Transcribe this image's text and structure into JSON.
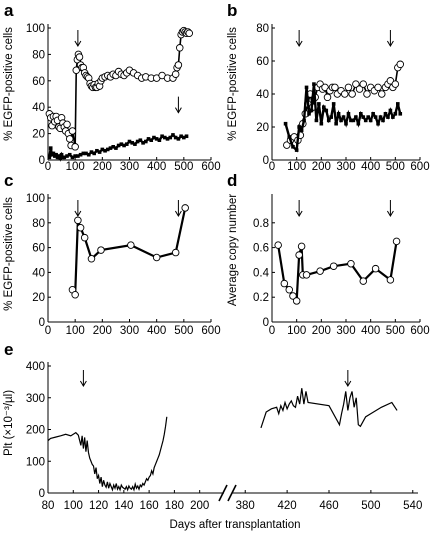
{
  "chart_data": [
    {
      "panel": "a",
      "type": "scatter",
      "ylabel": "% EGFP-positive cells",
      "xlabel": "",
      "xlim": [
        0,
        600
      ],
      "ylim": [
        0,
        100
      ],
      "xticks": [
        0,
        100,
        200,
        300,
        400,
        500,
        600
      ],
      "yticks": [
        0,
        20,
        40,
        60,
        80,
        100
      ],
      "arrows": [
        {
          "x": 110,
          "at": "top"
        },
        {
          "x": 480,
          "at": "mid"
        }
      ],
      "series": [
        {
          "marker": "open-circle",
          "x": [
            5,
            10,
            15,
            20,
            25,
            30,
            35,
            40,
            45,
            50,
            55,
            60,
            65,
            70,
            75,
            80,
            85,
            90,
            100,
            104,
            108,
            112,
            116,
            120,
            125,
            130,
            135,
            140,
            145,
            150,
            155,
            160,
            165,
            170,
            175,
            180,
            185,
            190,
            195,
            200,
            210,
            220,
            230,
            240,
            250,
            260,
            270,
            280,
            290,
            300,
            315,
            330,
            345,
            360,
            380,
            400,
            420,
            440,
            460,
            470,
            475,
            480,
            485,
            490,
            495,
            500,
            505,
            510,
            515,
            520
          ],
          "y": [
            35,
            32,
            26,
            33,
            29,
            33,
            30,
            25,
            24,
            32,
            28,
            25,
            22,
            27,
            20,
            16,
            11,
            22,
            10,
            68,
            76,
            80,
            78,
            72,
            70,
            70,
            66,
            64,
            63,
            62,
            58,
            56,
            55,
            57,
            55,
            55,
            58,
            56,
            60,
            62,
            63,
            64,
            63,
            65,
            64,
            67,
            65,
            64,
            66,
            68,
            66,
            64,
            62,
            63,
            62,
            62,
            64,
            62,
            62,
            65,
            70,
            72,
            85,
            95,
            97,
            98,
            97,
            96,
            97,
            96
          ]
        },
        {
          "marker": "filled-square",
          "x": [
            5,
            10,
            15,
            20,
            25,
            30,
            35,
            40,
            45,
            50,
            55,
            60,
            70,
            80,
            90,
            100,
            110,
            120,
            130,
            140,
            150,
            160,
            170,
            180,
            190,
            200,
            210,
            220,
            230,
            240,
            250,
            260,
            270,
            280,
            290,
            300,
            310,
            320,
            330,
            340,
            350,
            360,
            370,
            380,
            390,
            400,
            410,
            420,
            430,
            440,
            450,
            460,
            470,
            480,
            490,
            500,
            510
          ],
          "y": [
            2,
            9,
            4,
            5,
            3,
            4,
            2,
            3,
            1,
            4,
            2,
            2,
            3,
            4,
            2,
            3,
            3,
            4,
            5,
            5,
            4,
            6,
            5,
            7,
            6,
            8,
            7,
            8,
            9,
            10,
            9,
            11,
            12,
            11,
            12,
            14,
            13,
            12,
            14,
            15,
            13,
            14,
            16,
            15,
            17,
            16,
            15,
            18,
            17,
            16,
            17,
            19,
            17,
            16,
            18,
            17,
            18
          ]
        }
      ]
    },
    {
      "panel": "b",
      "type": "scatter",
      "ylabel": "% EGFP-positive cells",
      "xlabel": "",
      "xlim": [
        0,
        600
      ],
      "ylim": [
        0,
        80
      ],
      "xticks": [
        0,
        100,
        200,
        300,
        400,
        500,
        600
      ],
      "yticks": [
        0,
        20,
        40,
        60,
        80
      ],
      "arrows": [
        {
          "x": 110,
          "at": "top"
        },
        {
          "x": 480,
          "at": "top"
        }
      ],
      "series": [
        {
          "marker": "open-circle",
          "x": [
            60,
            75,
            90,
            105,
            115,
            125,
            135,
            145,
            155,
            165,
            175,
            185,
            195,
            205,
            215,
            225,
            235,
            245,
            255,
            265,
            280,
            295,
            310,
            325,
            340,
            355,
            370,
            385,
            400,
            415,
            430,
            445,
            460,
            470,
            480,
            490,
            500,
            510,
            520
          ],
          "y": [
            9,
            12,
            14,
            12,
            15,
            22,
            28,
            34,
            40,
            32,
            38,
            44,
            46,
            43,
            44,
            38,
            42,
            44,
            44,
            40,
            42,
            40,
            44,
            40,
            46,
            43,
            46,
            40,
            44,
            42,
            44,
            40,
            44,
            46,
            48,
            44,
            46,
            56,
            58
          ]
        },
        {
          "marker": "filled-square",
          "x": [
            55,
            70,
            85,
            100,
            110,
            120,
            130,
            140,
            150,
            160,
            170,
            180,
            190,
            200,
            210,
            220,
            230,
            240,
            250,
            260,
            270,
            280,
            290,
            300,
            310,
            320,
            330,
            340,
            350,
            360,
            370,
            380,
            390,
            400,
            410,
            420,
            430,
            440,
            450,
            460,
            470,
            480,
            490,
            500,
            510,
            520
          ],
          "y": [
            22,
            14,
            8,
            6,
            20,
            18,
            24,
            44,
            28,
            30,
            46,
            24,
            34,
            22,
            32,
            30,
            24,
            26,
            34,
            22,
            28,
            24,
            26,
            22,
            28,
            24,
            24,
            26,
            22,
            28,
            26,
            24,
            26,
            24,
            28,
            26,
            22,
            26,
            24,
            28,
            26,
            30,
            26,
            28,
            34,
            28
          ]
        }
      ]
    },
    {
      "panel": "c",
      "type": "line",
      "ylabel": "% EGFP-positive cells",
      "xlabel": "",
      "xlim": [
        0,
        600
      ],
      "ylim": [
        0,
        100
      ],
      "xticks": [
        0,
        100,
        200,
        300,
        400,
        500,
        600
      ],
      "yticks": [
        0,
        20,
        40,
        60,
        80,
        100
      ],
      "arrows": [
        {
          "x": 110,
          "at": "top"
        },
        {
          "x": 480,
          "at": "top"
        }
      ],
      "series": [
        {
          "marker": "open-circle",
          "x": [
            90,
            100,
            110,
            120,
            135,
            160,
            195,
            305,
            400,
            470,
            505
          ],
          "y": [
            26,
            22,
            82,
            76,
            68,
            51,
            58,
            62,
            52,
            56,
            92
          ]
        }
      ]
    },
    {
      "panel": "d",
      "type": "line",
      "ylabel": "Average copy number",
      "xlabel": "",
      "xlim": [
        0,
        600
      ],
      "ylim": [
        0,
        1
      ],
      "xticks": [
        0,
        100,
        200,
        300,
        400,
        500,
        600
      ],
      "yticks": [
        0,
        0.2,
        0.4,
        0.6,
        0.8
      ],
      "arrows": [
        {
          "x": 110,
          "at": "top"
        },
        {
          "x": 480,
          "at": "top"
        }
      ],
      "series": [
        {
          "marker": "open-circle",
          "x": [
            25,
            50,
            70,
            85,
            100,
            110,
            120,
            125,
            140,
            195,
            250,
            320,
            370,
            420,
            480,
            505
          ],
          "y": [
            0.62,
            0.31,
            0.26,
            0.21,
            0.17,
            0.54,
            0.61,
            0.38,
            0.38,
            0.41,
            0.45,
            0.47,
            0.33,
            0.43,
            0.34,
            0.65
          ]
        }
      ]
    },
    {
      "panel": "e",
      "type": "line",
      "ylabel": "Plt (×10⁻³/µl)",
      "xlabel": "Days after transplantation",
      "ylim": [
        0,
        400
      ],
      "yticks": [
        0,
        100,
        200,
        300,
        400
      ],
      "xticks": [
        80,
        100,
        120,
        140,
        160,
        180,
        200,
        380,
        420,
        460,
        500,
        540
      ],
      "axis_break": [
        205,
        375
      ],
      "arrows": [
        {
          "x": 108,
          "at": "top"
        },
        {
          "x": 478,
          "at": "top"
        }
      ],
      "series": [
        {
          "segment": "before-break",
          "x": [
            80,
            82,
            86,
            90,
            94,
            98,
            102,
            104,
            106,
            107,
            108,
            109,
            110,
            111,
            112,
            113,
            114,
            115,
            116,
            117,
            118,
            119,
            120,
            121,
            122,
            123,
            124,
            125,
            126,
            127,
            128,
            129,
            130,
            131,
            132,
            133,
            134,
            135,
            136,
            137,
            138,
            139,
            140,
            141,
            142,
            143,
            144,
            145,
            146,
            147,
            148,
            149,
            150,
            151,
            152,
            153,
            154,
            155,
            156,
            157,
            158,
            159,
            160,
            161,
            162,
            163,
            164,
            165,
            166,
            167,
            168,
            169,
            170,
            171,
            172,
            173,
            174
          ],
          "y": [
            165,
            172,
            176,
            180,
            185,
            180,
            190,
            182,
            150,
            180,
            140,
            175,
            130,
            165,
            128,
            110,
            100,
            90,
            85,
            60,
            80,
            45,
            55,
            30,
            50,
            20,
            40,
            25,
            18,
            35,
            15,
            30,
            20,
            10,
            25,
            15,
            30,
            12,
            20,
            10,
            25,
            18,
            15,
            12,
            20,
            10,
            22,
            15,
            12,
            20,
            10,
            28,
            15,
            22,
            12,
            25,
            20,
            30,
            25,
            35,
            45,
            40,
            50,
            55,
            70,
            60,
            80,
            90,
            100,
            110,
            120,
            135,
            150,
            165,
            185,
            210,
            240
          ]
        },
        {
          "segment": "after-break",
          "x": [
            395,
            400,
            405,
            410,
            412,
            414,
            416,
            418,
            420,
            422,
            424,
            426,
            428,
            430,
            432,
            434,
            436,
            438,
            440,
            460,
            470,
            472,
            474,
            476,
            478,
            480,
            482,
            484,
            486,
            488,
            490,
            495,
            500,
            510,
            520,
            525
          ],
          "y": [
            205,
            255,
            265,
            270,
            250,
            275,
            260,
            285,
            265,
            280,
            290,
            275,
            270,
            305,
            280,
            330,
            280,
            320,
            285,
            275,
            215,
            250,
            280,
            320,
            260,
            300,
            320,
            270,
            300,
            215,
            210,
            240,
            250,
            270,
            285,
            260
          ]
        }
      ]
    }
  ],
  "panel_letters": [
    "a",
    "b",
    "c",
    "d",
    "e"
  ],
  "tick_labels": {
    "x600": [
      "0",
      "100",
      "200",
      "300",
      "400",
      "500",
      "600"
    ],
    "y100": [
      "0",
      "20",
      "40",
      "60",
      "80",
      "100"
    ],
    "y80": [
      "0",
      "20",
      "40",
      "60",
      "80"
    ],
    "ycopy": [
      "0",
      "0.2",
      "0.4",
      "0.6",
      "0.8"
    ],
    "ye": [
      "0",
      "100",
      "200",
      "300",
      "400"
    ],
    "xe_left": [
      "80",
      "100",
      "120",
      "140",
      "160",
      "180",
      "200"
    ],
    "xe_right": [
      "380",
      "420",
      "460",
      "500",
      "540"
    ]
  }
}
